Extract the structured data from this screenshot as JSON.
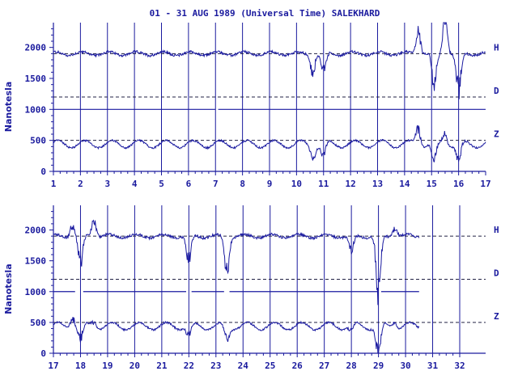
{
  "chart_data": {
    "type": "line",
    "title": "01 - 31 AUG 1989 (Universal Time) SALEKHARD",
    "ylabel": "Nanotesla",
    "ylim": [
      0,
      2400
    ],
    "y_ticks": [
      "0",
      "500",
      "1000",
      "1500",
      "2000"
    ],
    "series_labels": [
      "H",
      "D",
      "Z"
    ],
    "colors": {
      "trace": "#1a1aa0",
      "text": "#1a1a9e",
      "axis": "#1a1a9e"
    },
    "panels": [
      {
        "x_ticks": [
          "1",
          "2",
          "3",
          "4",
          "5",
          "6",
          "7",
          "8",
          "9",
          "10",
          "11",
          "12",
          "13",
          "14",
          "15",
          "16",
          "17"
        ],
        "xlim": [
          1,
          17
        ],
        "baselines": {
          "H": 1900,
          "D": 1200,
          "Z": 500
        },
        "disturbances": [
          {
            "day": 10.6,
            "H": -300,
            "Z": -200
          },
          {
            "day": 11.0,
            "H": -350,
            "Z": -250
          },
          {
            "day": 14.5,
            "H": 400,
            "Z": 300
          },
          {
            "day": 15.1,
            "H": -600,
            "Z": -350
          },
          {
            "day": 15.5,
            "H": 600,
            "Z": 200
          },
          {
            "day": 16.0,
            "H": -700,
            "Z": -300
          }
        ]
      },
      {
        "x_ticks": [
          "17",
          "18",
          "19",
          "20",
          "21",
          "22",
          "23",
          "24",
          "25",
          "26",
          "27",
          "28",
          "29",
          "30",
          "31",
          "32"
        ],
        "xlim": [
          17,
          32
        ],
        "baselines": {
          "H": 1900,
          "D": 1200,
          "Z": 500
        },
        "disturbances": [
          {
            "day": 17.7,
            "H": 200,
            "Z": 200
          },
          {
            "day": 18.0,
            "H": -500,
            "Z": -250
          },
          {
            "day": 18.5,
            "H": 300,
            "Z": 100
          },
          {
            "day": 22.0,
            "H": -500,
            "Z": -200
          },
          {
            "day": 23.4,
            "H": -600,
            "Z": -250
          },
          {
            "day": 28.0,
            "H": -300,
            "Z": -100
          },
          {
            "day": 29.0,
            "H": -1000,
            "Z": -500
          },
          {
            "day": 29.6,
            "H": 150,
            "Z": 100
          }
        ]
      }
    ]
  }
}
